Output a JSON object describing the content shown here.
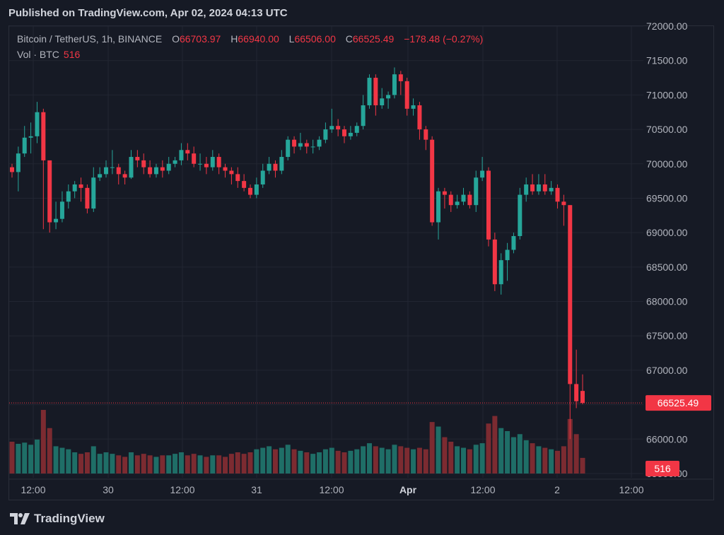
{
  "header": {
    "published": "Published on TradingView.com, Apr 02, 2024 04:13 UTC"
  },
  "legend": {
    "symbol": "Bitcoin / TetherUS, 1h, BINANCE",
    "o_label": "O",
    "o_value": "66703.97",
    "h_label": "H",
    "h_value": "66940.00",
    "l_label": "L",
    "l_value": "66506.00",
    "c_label": "C",
    "c_value": "66525.49",
    "change": "−178.48 (−0.27%)"
  },
  "volume_legend": {
    "label": "Vol · BTC",
    "value": "516"
  },
  "footer": {
    "logo_text": "TradingView"
  },
  "colors": {
    "up": "#26a69a",
    "down": "#f23645",
    "up_vol": "#1f6e67",
    "down_vol": "#7c2b31",
    "grid": "#222632",
    "axis_text": "#b2b5be",
    "bg": "#161a25"
  },
  "chart_data": {
    "type": "candlestick",
    "symbol": "BTCUSDT",
    "interval": "1h",
    "y_ticks": [
      "72000.00",
      "71500.00",
      "71000.00",
      "70500.00",
      "70000.00",
      "69500.00",
      "69000.00",
      "68500.00",
      "68000.00",
      "67500.00",
      "67000.00",
      "66500.00",
      "66000.00",
      "65500.00"
    ],
    "ylim": [
      65500,
      72000
    ],
    "x_ticks": [
      "12:00",
      "30",
      "12:00",
      "31",
      "12:00",
      "Apr",
      "12:00",
      "2",
      "12:00"
    ],
    "last_price_label": "66525.49",
    "last_volume_label": "516",
    "candles": [
      [
        69950,
        69880,
        70000,
        69800,
        1050
      ],
      [
        69880,
        70150,
        70250,
        69600,
        980
      ],
      [
        70150,
        70380,
        70550,
        70100,
        1020
      ],
      [
        70380,
        70400,
        70600,
        70150,
        950
      ],
      [
        70400,
        70750,
        70900,
        70300,
        1120
      ],
      [
        70750,
        70050,
        70800,
        69050,
        2100
      ],
      [
        70050,
        69150,
        70000,
        69000,
        1500
      ],
      [
        69150,
        69200,
        69450,
        69050,
        900
      ],
      [
        69200,
        69450,
        69600,
        69150,
        850
      ],
      [
        69450,
        69600,
        69700,
        69350,
        800
      ],
      [
        69600,
        69700,
        69750,
        69500,
        700
      ],
      [
        69700,
        69650,
        69800,
        69450,
        650
      ],
      [
        69650,
        69350,
        69700,
        69280,
        700
      ],
      [
        69350,
        69800,
        69950,
        69300,
        900
      ],
      [
        69800,
        69850,
        69950,
        69750,
        650
      ],
      [
        69850,
        69950,
        70050,
        69800,
        700
      ],
      [
        69950,
        69950,
        70200,
        69850,
        650
      ],
      [
        69950,
        69850,
        70000,
        69700,
        600
      ],
      [
        69850,
        69800,
        69900,
        69700,
        550
      ],
      [
        69800,
        70100,
        70200,
        69780,
        700
      ],
      [
        70100,
        70050,
        70200,
        69950,
        600
      ],
      [
        70050,
        69950,
        70150,
        69850,
        650
      ],
      [
        69950,
        69850,
        70050,
        69800,
        600
      ],
      [
        69850,
        69950,
        70000,
        69800,
        550
      ],
      [
        69950,
        69900,
        70050,
        69800,
        600
      ],
      [
        69900,
        70000,
        70100,
        69850,
        600
      ],
      [
        70000,
        70050,
        70100,
        69950,
        650
      ],
      [
        70050,
        70200,
        70300,
        69980,
        700
      ],
      [
        70200,
        70150,
        70300,
        70050,
        600
      ],
      [
        70150,
        70000,
        70250,
        69950,
        650
      ],
      [
        70000,
        70000,
        70150,
        69900,
        600
      ],
      [
        70000,
        69950,
        70100,
        69850,
        550
      ],
      [
        69950,
        70100,
        70200,
        69900,
        600
      ],
      [
        70100,
        69950,
        70150,
        69850,
        600
      ],
      [
        69950,
        69900,
        70000,
        69800,
        550
      ],
      [
        69900,
        69850,
        69950,
        69700,
        650
      ],
      [
        69850,
        69750,
        69950,
        69650,
        700
      ],
      [
        69750,
        69650,
        69850,
        69600,
        650
      ],
      [
        69650,
        69550,
        69700,
        69500,
        700
      ],
      [
        69550,
        69700,
        69800,
        69500,
        800
      ],
      [
        69700,
        69900,
        70000,
        69650,
        850
      ],
      [
        69900,
        70000,
        70100,
        69850,
        900
      ],
      [
        70000,
        69900,
        70050,
        69800,
        800
      ],
      [
        69900,
        70100,
        70200,
        69850,
        850
      ],
      [
        70100,
        70350,
        70400,
        70050,
        950
      ],
      [
        70350,
        70250,
        70400,
        70150,
        800
      ],
      [
        70250,
        70300,
        70450,
        70200,
        750
      ],
      [
        70300,
        70250,
        70350,
        70150,
        700
      ],
      [
        70250,
        70250,
        70350,
        70150,
        650
      ],
      [
        70250,
        70350,
        70400,
        70200,
        700
      ],
      [
        70350,
        70500,
        70600,
        70300,
        800
      ],
      [
        70500,
        70550,
        70800,
        70450,
        850
      ],
      [
        70550,
        70500,
        70650,
        70400,
        750
      ],
      [
        70500,
        70400,
        70550,
        70300,
        700
      ],
      [
        70400,
        70450,
        70550,
        70350,
        750
      ],
      [
        70450,
        70550,
        70600,
        70400,
        800
      ],
      [
        70550,
        70850,
        71000,
        70500,
        900
      ],
      [
        70850,
        71250,
        71300,
        70800,
        1000
      ],
      [
        71250,
        70850,
        71300,
        70700,
        900
      ],
      [
        70850,
        70950,
        71100,
        70800,
        850
      ],
      [
        70950,
        71000,
        71050,
        70800,
        800
      ],
      [
        71000,
        71300,
        71400,
        70950,
        950
      ],
      [
        71300,
        71200,
        71350,
        71000,
        900
      ],
      [
        71200,
        70800,
        71250,
        70700,
        850
      ],
      [
        70800,
        70850,
        70950,
        70700,
        800
      ],
      [
        70850,
        70500,
        70900,
        70350,
        850
      ],
      [
        70500,
        70350,
        70550,
        70200,
        800
      ],
      [
        70350,
        69150,
        70400,
        69100,
        1700
      ],
      [
        69150,
        69600,
        69650,
        68900,
        1550
      ],
      [
        69600,
        69550,
        69650,
        69350,
        1200
      ],
      [
        69550,
        69400,
        69600,
        69300,
        1050
      ],
      [
        69400,
        69450,
        69550,
        69350,
        900
      ],
      [
        69450,
        69550,
        69650,
        69400,
        850
      ],
      [
        69550,
        69400,
        69600,
        69350,
        800
      ],
      [
        69400,
        69800,
        69900,
        69300,
        950
      ],
      [
        69800,
        69900,
        70100,
        69750,
        1000
      ],
      [
        69900,
        68900,
        69950,
        68800,
        1650
      ],
      [
        68900,
        68250,
        69000,
        68150,
        1900
      ],
      [
        68250,
        68600,
        68700,
        68100,
        1500
      ],
      [
        68600,
        68750,
        68850,
        68300,
        1400
      ],
      [
        68750,
        68950,
        69000,
        68700,
        1200
      ],
      [
        68950,
        69550,
        69650,
        68900,
        1300
      ],
      [
        69550,
        69700,
        69800,
        69450,
        1100
      ],
      [
        69700,
        69600,
        69850,
        69550,
        1000
      ],
      [
        69600,
        69700,
        69850,
        69550,
        900
      ],
      [
        69700,
        69600,
        69850,
        69550,
        850
      ],
      [
        69600,
        69650,
        69750,
        69550,
        800
      ],
      [
        69650,
        69450,
        69700,
        69350,
        750
      ],
      [
        69450,
        69400,
        69550,
        69100,
        900
      ],
      [
        69400,
        66800,
        69400,
        66000,
        1800
      ],
      [
        66800,
        66550,
        67300,
        66450,
        1300
      ],
      [
        66700,
        66525,
        66940,
        66506,
        516
      ]
    ]
  }
}
